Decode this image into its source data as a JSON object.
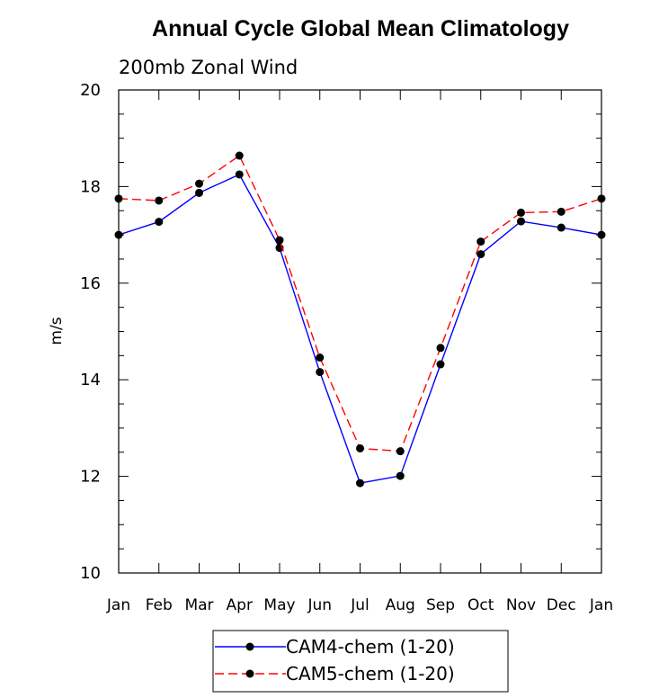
{
  "chart_data": {
    "type": "line",
    "title": "Annual Cycle Global Mean Climatology",
    "subtitle": "200mb Zonal Wind",
    "xlabel": "",
    "ylabel": "m/s",
    "categories": [
      "Jan",
      "Feb",
      "Mar",
      "Apr",
      "May",
      "Jun",
      "Jul",
      "Aug",
      "Sep",
      "Oct",
      "Nov",
      "Dec",
      "Jan"
    ],
    "ylim": [
      10,
      20
    ],
    "yticks": [
      "10",
      "12",
      "14",
      "16",
      "18",
      "20"
    ],
    "legend_position": "bottom",
    "grid": false,
    "series": [
      {
        "name": "CAM4-chem (1-20)",
        "color": "#0000ff",
        "dash": "solid",
        "values": [
          17.0,
          17.27,
          17.87,
          18.25,
          16.73,
          14.16,
          11.86,
          12.01,
          14.32,
          16.6,
          17.28,
          17.15,
          17.0
        ]
      },
      {
        "name": "CAM5-chem (1-20)",
        "color": "#ff0000",
        "dash": "dashed",
        "values": [
          17.75,
          17.71,
          18.06,
          18.64,
          16.89,
          14.46,
          12.58,
          12.52,
          14.66,
          16.86,
          17.46,
          17.48,
          17.75
        ]
      }
    ]
  }
}
